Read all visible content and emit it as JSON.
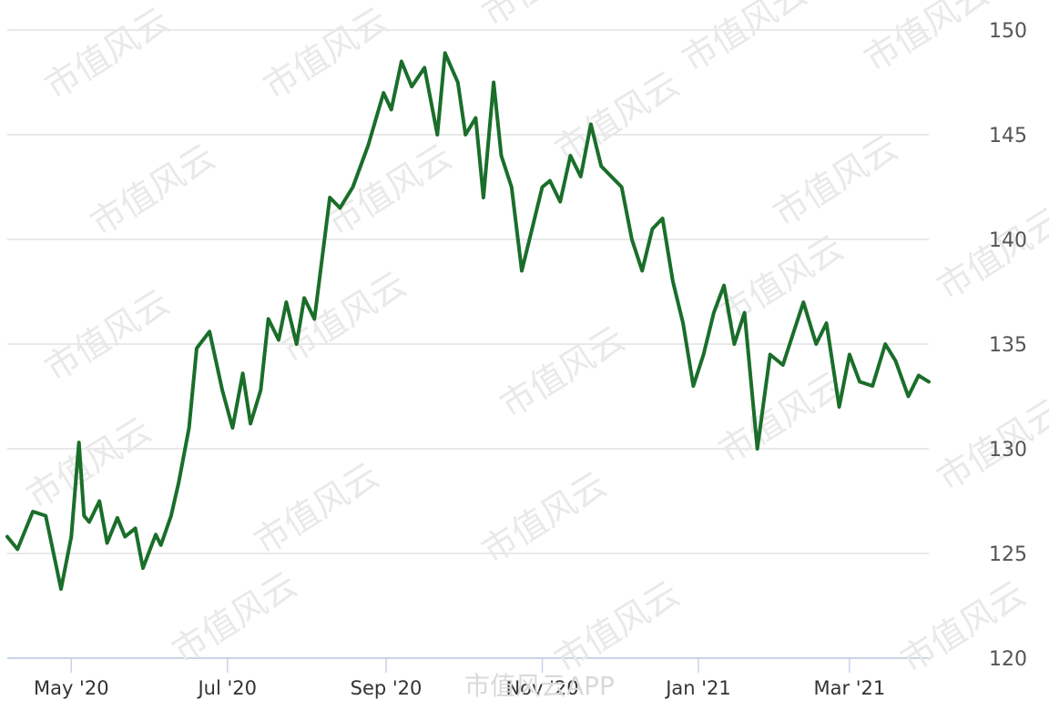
{
  "chart_data": {
    "type": "line",
    "title": "",
    "xlabel": "",
    "ylabel": "",
    "ylim": [
      120,
      150
    ],
    "yticks": [
      120,
      125,
      130,
      135,
      140,
      145,
      150
    ],
    "xticks": [
      {
        "label": "May '20",
        "date": "2020-05-01"
      },
      {
        "label": "Jul '20",
        "date": "2020-07-01"
      },
      {
        "label": "Sep '20",
        "date": "2020-09-01"
      },
      {
        "label": "Nov '20",
        "date": "2020-11-01"
      },
      {
        "label": "Jan '21",
        "date": "2021-01-01"
      },
      {
        "label": "Mar '21",
        "date": "2021-03-01"
      }
    ],
    "grid": true,
    "line_color": "#1a6e2a",
    "series": [
      {
        "x": [
          "2020-04-06",
          "2020-04-10",
          "2020-04-16",
          "2020-04-21",
          "2020-04-27",
          "2020-05-01",
          "2020-05-04",
          "2020-05-06",
          "2020-05-08",
          "2020-05-12",
          "2020-05-15",
          "2020-05-19",
          "2020-05-22",
          "2020-05-26",
          "2020-05-29",
          "2020-06-03",
          "2020-06-05",
          "2020-06-09",
          "2020-06-12",
          "2020-06-16",
          "2020-06-19",
          "2020-06-24",
          "2020-06-29",
          "2020-07-03",
          "2020-07-07",
          "2020-07-10",
          "2020-07-14",
          "2020-07-17",
          "2020-07-21",
          "2020-07-24",
          "2020-07-28",
          "2020-07-31",
          "2020-08-04",
          "2020-08-10",
          "2020-08-14",
          "2020-08-19",
          "2020-08-25",
          "2020-08-31",
          "2020-09-03",
          "2020-09-07",
          "2020-09-11",
          "2020-09-16",
          "2020-09-21",
          "2020-09-24",
          "2020-09-29",
          "2020-10-02",
          "2020-10-06",
          "2020-10-09",
          "2020-10-13",
          "2020-10-16",
          "2020-10-20",
          "2020-10-24",
          "2020-10-28",
          "2020-11-01",
          "2020-11-04",
          "2020-11-08",
          "2020-11-12",
          "2020-11-16",
          "2020-11-20",
          "2020-11-24",
          "2020-11-28",
          "2020-12-02",
          "2020-12-06",
          "2020-12-10",
          "2020-12-14",
          "2020-12-18",
          "2020-12-22",
          "2020-12-26",
          "2020-12-30",
          "2021-01-03",
          "2021-01-07",
          "2021-01-11",
          "2021-01-15",
          "2021-01-19",
          "2021-01-24",
          "2021-01-29",
          "2021-02-03",
          "2021-02-07",
          "2021-02-11",
          "2021-02-16",
          "2021-02-20",
          "2021-02-25",
          "2021-03-01",
          "2021-03-05",
          "2021-03-10",
          "2021-03-15",
          "2021-03-19",
          "2021-03-24",
          "2021-03-28",
          "2021-04-01"
        ],
        "values": [
          125.8,
          125.2,
          127.0,
          126.8,
          123.3,
          125.8,
          130.3,
          126.8,
          126.5,
          127.5,
          125.5,
          126.7,
          125.8,
          126.2,
          124.3,
          125.9,
          125.4,
          126.8,
          128.4,
          131.0,
          134.8,
          135.6,
          132.8,
          131.0,
          133.6,
          131.2,
          132.8,
          136.2,
          135.2,
          137.0,
          135.0,
          137.2,
          136.2,
          142.0,
          141.5,
          142.5,
          144.5,
          147.0,
          146.2,
          148.5,
          147.3,
          148.2,
          145.0,
          148.9,
          147.5,
          145.0,
          145.8,
          142.0,
          147.5,
          144.0,
          142.5,
          138.5,
          140.5,
          142.5,
          142.8,
          141.8,
          144.0,
          143.0,
          145.5,
          143.5,
          143.0,
          142.5,
          140.0,
          138.5,
          140.5,
          141.0,
          138.0,
          136.0,
          133.0,
          134.5,
          136.5,
          137.8,
          135.0,
          136.5,
          130.0,
          134.5,
          134.0,
          135.5,
          137.0,
          135.0,
          136.0,
          132.0,
          134.5,
          133.2,
          133.0,
          135.0,
          134.2,
          132.5,
          133.5,
          133.2
        ]
      }
    ]
  },
  "watermark": {
    "text": "市值风云",
    "logo_text": "市值风云APP",
    "color": "#e9e9e9"
  }
}
